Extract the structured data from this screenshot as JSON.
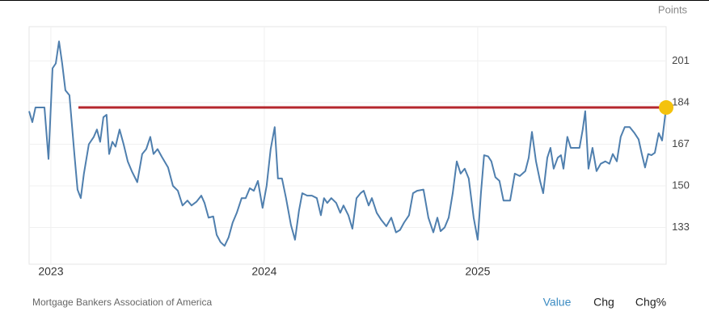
{
  "chart_data": {
    "type": "line",
    "unit_label": "Points",
    "source": "Mortgage Bankers Association of America",
    "buttons": [
      "Value",
      "Chg",
      "Chg%"
    ],
    "color": "#4f7fae",
    "grid": true,
    "xlim": [
      2022.898,
      2025.883
    ],
    "xticks": [
      2023,
      2024,
      2025
    ],
    "ylim": [
      118,
      215
    ],
    "yticks": [
      133,
      150,
      167,
      184,
      201
    ],
    "reference_line": {
      "value": 182,
      "start": 2023.129,
      "color": "#b5272d"
    },
    "last_point_color": "#f4c20d",
    "x": [
      2022.898,
      2022.913,
      2022.928,
      2022.97,
      2022.989,
      2023.008,
      2023.023,
      2023.038,
      2023.053,
      2023.068,
      2023.087,
      2023.11,
      2023.125,
      2023.14,
      2023.155,
      2023.178,
      2023.201,
      2023.216,
      2023.231,
      2023.246,
      2023.261,
      2023.273,
      2023.288,
      2023.303,
      2023.322,
      2023.341,
      2023.36,
      2023.379,
      2023.405,
      2023.428,
      2023.447,
      2023.466,
      2023.481,
      2023.5,
      2023.519,
      2023.549,
      2023.572,
      2023.595,
      2023.617,
      2023.64,
      2023.659,
      2023.682,
      2023.705,
      2023.72,
      2023.739,
      2023.761,
      2023.777,
      2023.795,
      2023.814,
      2023.833,
      2023.852,
      2023.871,
      2023.894,
      2023.913,
      2023.932,
      2023.951,
      2023.97,
      2023.992,
      2024.011,
      2024.03,
      2024.049,
      2024.064,
      2024.083,
      2024.102,
      2024.125,
      2024.144,
      2024.163,
      2024.178,
      2024.201,
      2024.223,
      2024.246,
      2024.265,
      2024.28,
      2024.295,
      2024.314,
      2024.337,
      2024.356,
      2024.371,
      2024.394,
      2024.413,
      2024.432,
      2024.451,
      2024.466,
      2024.489,
      2024.504,
      2024.527,
      2024.549,
      2024.572,
      2024.595,
      2024.617,
      2024.636,
      2024.655,
      2024.678,
      2024.697,
      2024.716,
      2024.746,
      2024.769,
      2024.792,
      2024.811,
      2024.826,
      2024.845,
      2024.864,
      2024.883,
      2024.902,
      2024.92,
      2024.939,
      2024.958,
      2024.981,
      2025.0,
      2025.015,
      2025.03,
      2025.049,
      2025.064,
      2025.083,
      2025.102,
      2025.121,
      2025.152,
      2025.174,
      2025.197,
      2025.223,
      2025.239,
      2025.254,
      2025.273,
      2025.292,
      2025.307,
      2025.326,
      2025.341,
      2025.356,
      2025.375,
      2025.39,
      2025.402,
      2025.42,
      2025.436,
      2025.455,
      2025.477,
      2025.492,
      2025.504,
      2025.519,
      2025.538,
      2025.557,
      2025.576,
      2025.598,
      2025.617,
      2025.633,
      2025.652,
      2025.67,
      2025.689,
      2025.712,
      2025.735,
      2025.754,
      2025.769,
      2025.784,
      2025.799,
      2025.814,
      2025.83,
      2025.848,
      2025.864,
      2025.883
    ],
    "values": [
      180.5,
      176,
      182,
      182,
      161,
      198,
      200,
      209,
      200,
      189,
      187,
      163,
      148.5,
      145,
      155,
      167,
      170,
      173,
      168,
      178,
      179,
      163,
      168,
      166,
      173,
      167,
      160,
      156,
      151.5,
      163,
      165,
      170,
      163,
      165,
      162,
      157.5,
      150,
      148,
      142,
      144,
      142,
      143.5,
      146,
      143,
      137,
      137.5,
      130,
      127,
      125.5,
      129,
      135,
      139,
      145,
      145,
      149,
      148,
      152,
      141,
      150,
      165,
      174,
      153,
      153,
      145,
      134,
      128,
      140,
      147,
      146,
      146,
      145,
      138,
      145,
      143,
      145,
      143,
      139,
      142,
      138,
      132.5,
      145,
      147,
      148,
      142,
      145,
      139,
      136,
      133.5,
      137,
      131,
      132,
      135,
      138,
      147,
      148,
      148.5,
      137,
      131,
      137,
      131.5,
      133,
      137,
      147,
      160,
      155,
      157,
      153,
      137,
      128,
      147,
      162.5,
      162,
      160,
      153.5,
      152,
      144,
      144,
      155,
      154,
      156,
      161.5,
      172,
      160,
      152,
      147,
      161.5,
      165.5,
      157,
      161.5,
      162.5,
      157,
      170,
      165.5,
      165.5,
      165.5,
      173,
      180.5,
      157,
      165.5,
      156,
      159,
      160,
      159,
      163,
      160,
      170,
      174,
      174,
      171.5,
      169,
      163,
      157.5,
      163,
      162.5,
      163.5,
      171.5,
      168.5,
      182
    ]
  }
}
